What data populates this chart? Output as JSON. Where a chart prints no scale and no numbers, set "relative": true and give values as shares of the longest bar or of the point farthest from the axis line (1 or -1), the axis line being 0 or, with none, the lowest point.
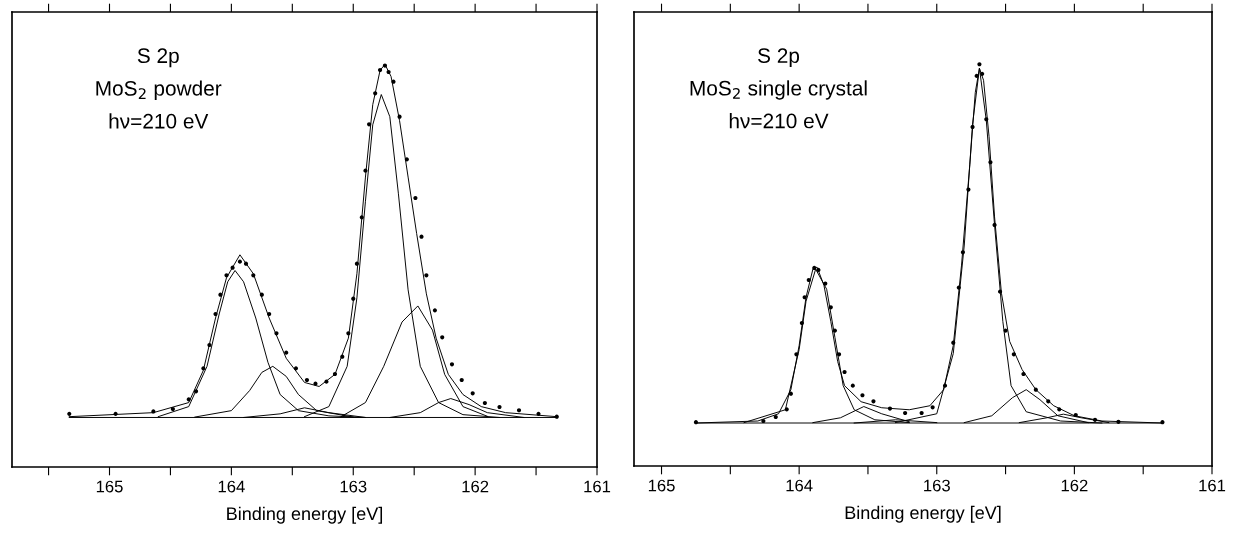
{
  "chart_data": [
    {
      "type": "line",
      "relative": true,
      "xlabel": "Binding energy [eV]",
      "annotations": [
        "S 2p",
        "MoS$_{2}$ powder",
        "hν=210 eV"
      ],
      "xlim": [
        165.8,
        161
      ],
      "xticks": [
        {
          "value": 165.5,
          "label": null
        },
        165,
        {
          "value": 164.5,
          "label": null
        },
        164,
        {
          "value": 163.5,
          "label": null
        },
        163,
        {
          "value": 162.5,
          "label": null
        },
        162,
        {
          "value": 161.5,
          "label": null
        },
        161
      ],
      "tick_labels": "x",
      "legend": false,
      "grid": false,
      "series": [
        {
          "type": "scatter",
          "marker": "circle",
          "color": "#000000",
          "x": [
            165.33,
            164.95,
            164.64,
            164.48,
            164.35,
            164.29,
            164.23,
            164.18,
            164.13,
            164.09,
            164.04,
            163.99,
            163.93,
            163.88,
            163.82,
            163.75,
            163.69,
            163.63,
            163.55,
            163.47,
            163.38,
            163.31,
            163.22,
            163.15,
            163.09,
            163.04,
            163.0,
            162.97,
            162.93,
            162.9,
            162.87,
            162.82,
            162.78,
            162.74,
            162.71,
            162.67,
            162.62,
            162.56,
            162.49,
            162.44,
            162.4,
            162.33,
            162.27,
            162.19,
            162.11,
            162.02,
            161.92,
            161.8,
            161.64,
            161.48,
            161.33
          ],
          "values": [
            0.132,
            0.132,
            0.138,
            0.144,
            0.168,
            0.188,
            0.245,
            0.303,
            0.38,
            0.428,
            0.476,
            0.495,
            0.51,
            0.505,
            0.476,
            0.428,
            0.38,
            0.332,
            0.284,
            0.245,
            0.216,
            0.207,
            0.212,
            0.231,
            0.274,
            0.332,
            0.418,
            0.505,
            0.62,
            0.736,
            0.851,
            0.928,
            0.986,
            0.997,
            0.981,
            0.957,
            0.87,
            0.764,
            0.668,
            0.572,
            0.476,
            0.389,
            0.322,
            0.255,
            0.216,
            0.183,
            0.159,
            0.149,
            0.141,
            0.132,
            0.125
          ]
        },
        {
          "color": "#000000",
          "x": [
            165.33,
            164.64,
            164.35,
            164.23,
            164.13,
            164.04,
            163.93,
            163.82,
            163.69,
            163.55,
            163.4,
            163.28,
            163.15,
            163.04,
            162.97,
            162.9,
            162.84,
            162.78,
            162.74,
            162.69,
            162.62,
            162.55,
            162.48,
            162.4,
            162.32,
            162.22,
            162.1,
            161.95,
            161.75,
            161.33
          ],
          "values": [
            0.125,
            0.135,
            0.16,
            0.24,
            0.37,
            0.47,
            0.527,
            0.48,
            0.37,
            0.27,
            0.21,
            0.2,
            0.23,
            0.32,
            0.48,
            0.72,
            0.9,
            0.985,
            1.0,
            0.97,
            0.86,
            0.72,
            0.58,
            0.43,
            0.32,
            0.23,
            0.18,
            0.15,
            0.135,
            0.125
          ]
        },
        {
          "color": "#000000",
          "x": [
            164.6,
            164.35,
            164.2,
            164.1,
            164.03,
            163.97,
            163.9,
            163.8,
            163.7,
            163.6,
            163.45,
            163.2,
            162.9
          ],
          "values": [
            0.125,
            0.15,
            0.25,
            0.38,
            0.46,
            0.488,
            0.46,
            0.37,
            0.26,
            0.18,
            0.14,
            0.127,
            0.123
          ]
        },
        {
          "color": "#000000",
          "x": [
            164.3,
            164.0,
            163.85,
            163.75,
            163.66,
            163.55,
            163.45,
            163.3,
            163.0
          ],
          "values": [
            0.124,
            0.14,
            0.19,
            0.235,
            0.25,
            0.225,
            0.18,
            0.14,
            0.124
          ]
        },
        {
          "color": "#000000",
          "x": [
            163.9,
            163.6,
            163.4,
            163.2,
            162.9
          ],
          "values": [
            0.123,
            0.132,
            0.147,
            0.135,
            0.123
          ]
        },
        {
          "color": "#000000",
          "x": [
            163.4,
            163.2,
            163.05,
            162.97,
            162.9,
            162.84,
            162.77,
            162.7,
            162.63,
            162.55,
            162.45,
            162.3,
            162.1,
            161.8
          ],
          "values": [
            0.125,
            0.15,
            0.25,
            0.42,
            0.66,
            0.85,
            0.925,
            0.87,
            0.68,
            0.44,
            0.25,
            0.16,
            0.13,
            0.123
          ]
        },
        {
          "color": "#000000",
          "x": [
            163.1,
            162.9,
            162.75,
            162.6,
            162.47,
            162.35,
            162.25,
            162.1,
            161.9
          ],
          "values": [
            0.125,
            0.16,
            0.25,
            0.36,
            0.4,
            0.34,
            0.23,
            0.15,
            0.126
          ]
        },
        {
          "color": "#000000",
          "x": [
            162.7,
            162.45,
            162.3,
            162.2,
            162.05,
            161.9,
            161.6
          ],
          "values": [
            0.123,
            0.135,
            0.16,
            0.17,
            0.155,
            0.135,
            0.123
          ]
        },
        {
          "color": "#000000",
          "x": [
            165.33,
            161.33
          ],
          "values": [
            0.123,
            0.123
          ]
        }
      ]
    },
    {
      "type": "line",
      "relative": true,
      "xlabel": "Binding energy [eV]",
      "annotations": [
        "S 2p",
        "MoS$_{2}$ single crystal",
        "hν=210 eV"
      ],
      "xlim": [
        165.2,
        161
      ],
      "xticks": [
        165,
        {
          "value": 164.5,
          "label": null
        },
        164,
        {
          "value": 163.5,
          "label": null
        },
        163,
        {
          "value": 162.5,
          "label": null
        },
        162,
        {
          "value": 161.5,
          "label": null
        },
        161
      ],
      "tick_labels": "x",
      "legend": false,
      "grid": false,
      "series": [
        {
          "type": "scatter",
          "marker": "circle",
          "color": "#000000",
          "x": [
            164.75,
            164.26,
            164.17,
            164.09,
            164.06,
            164.02,
            163.98,
            163.96,
            163.93,
            163.89,
            163.86,
            163.81,
            163.77,
            163.74,
            163.71,
            163.67,
            163.61,
            163.54,
            163.46,
            163.34,
            163.23,
            163.11,
            163.03,
            162.94,
            162.88,
            162.84,
            162.81,
            162.77,
            162.74,
            162.71,
            162.69,
            162.67,
            162.64,
            162.61,
            162.58,
            162.54,
            162.5,
            162.44,
            162.37,
            162.28,
            162.19,
            162.11,
            161.99,
            161.85,
            161.68,
            161.36
          ],
          "values": [
            0.109,
            0.112,
            0.122,
            0.141,
            0.18,
            0.278,
            0.356,
            0.42,
            0.463,
            0.493,
            0.488,
            0.454,
            0.395,
            0.337,
            0.278,
            0.234,
            0.2,
            0.176,
            0.161,
            0.143,
            0.132,
            0.132,
            0.146,
            0.2,
            0.307,
            0.444,
            0.532,
            0.688,
            0.844,
            0.971,
            1.0,
            0.976,
            0.863,
            0.756,
            0.6,
            0.434,
            0.337,
            0.278,
            0.229,
            0.19,
            0.161,
            0.141,
            0.127,
            0.115,
            0.11,
            0.109
          ]
        },
        {
          "color": "#000000",
          "x": [
            164.75,
            164.3,
            164.15,
            164.06,
            164.0,
            163.95,
            163.9,
            163.87,
            163.82,
            163.77,
            163.72,
            163.67,
            163.55,
            163.4,
            163.2,
            163.05,
            162.95,
            162.88,
            162.82,
            162.76,
            162.72,
            162.69,
            162.66,
            162.62,
            162.58,
            162.53,
            162.47,
            162.38,
            162.28,
            162.15,
            162.0,
            161.8,
            161.36
          ],
          "values": [
            0.107,
            0.112,
            0.13,
            0.19,
            0.3,
            0.42,
            0.49,
            0.495,
            0.45,
            0.36,
            0.26,
            0.2,
            0.16,
            0.145,
            0.14,
            0.15,
            0.19,
            0.3,
            0.5,
            0.75,
            0.93,
            0.99,
            0.96,
            0.82,
            0.62,
            0.43,
            0.31,
            0.24,
            0.19,
            0.15,
            0.125,
            0.112,
            0.107
          ]
        },
        {
          "color": "#000000",
          "x": [
            164.4,
            164.1,
            164.0,
            163.95,
            163.88,
            163.8,
            163.74,
            163.68,
            163.6,
            163.45,
            163.2
          ],
          "values": [
            0.108,
            0.14,
            0.29,
            0.41,
            0.49,
            0.44,
            0.32,
            0.2,
            0.14,
            0.115,
            0.108
          ]
        },
        {
          "color": "#000000",
          "x": [
            163.9,
            163.7,
            163.53,
            163.4,
            163.2
          ],
          "values": [
            0.108,
            0.12,
            0.148,
            0.13,
            0.11
          ]
        },
        {
          "color": "#000000",
          "x": [
            163.6,
            163.3,
            163.0
          ],
          "values": [
            0.107,
            0.115,
            0.108
          ]
        },
        {
          "color": "#000000",
          "x": [
            163.3,
            163.0,
            162.88,
            162.8,
            162.74,
            162.69,
            162.64,
            162.58,
            162.52,
            162.46,
            162.35,
            162.1,
            161.8
          ],
          "values": [
            0.108,
            0.13,
            0.28,
            0.55,
            0.85,
            0.99,
            0.86,
            0.6,
            0.36,
            0.2,
            0.135,
            0.112,
            0.107
          ]
        },
        {
          "color": "#000000",
          "x": [
            162.8,
            162.6,
            162.45,
            162.35,
            162.25,
            162.12,
            161.9
          ],
          "values": [
            0.108,
            0.125,
            0.17,
            0.19,
            0.165,
            0.125,
            0.108
          ]
        },
        {
          "color": "#000000",
          "x": [
            162.4,
            162.2,
            162.08,
            161.95,
            161.75
          ],
          "values": [
            0.108,
            0.12,
            0.129,
            0.12,
            0.108
          ]
        },
        {
          "color": "#000000",
          "x": [
            164.75,
            161.36
          ],
          "values": [
            0.107,
            0.107
          ]
        }
      ]
    }
  ]
}
